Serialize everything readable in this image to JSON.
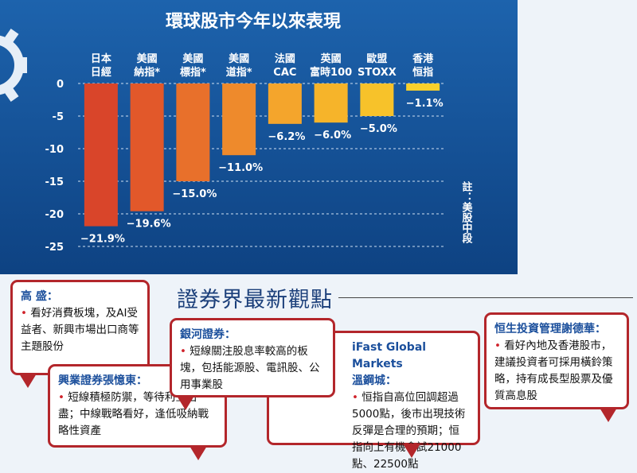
{
  "chart_data": {
    "type": "bar",
    "title": "環球股市今年以來表現",
    "categories": [
      [
        "日本",
        "日經"
      ],
      [
        "美國",
        "納指*"
      ],
      [
        "美國",
        "標指*"
      ],
      [
        "美國",
        "道指*"
      ],
      [
        "法國",
        "CAC"
      ],
      [
        "英國",
        "富時100"
      ],
      [
        "歐盟",
        "STOXX"
      ],
      [
        "香港",
        "恒指"
      ]
    ],
    "values": [
      -21.9,
      -19.6,
      -15.0,
      -11.0,
      -6.2,
      -6.0,
      -5.0,
      -1.1
    ],
    "value_labels": [
      "−21.9%",
      "−19.6%",
      "−15.0%",
      "−11.0%",
      "−6.2%",
      "−6.0%",
      "−5.0%",
      "−1.1%"
    ],
    "colors": [
      "#d9452a",
      "#e2582a",
      "#e8702b",
      "#ee8a2c",
      "#f4a52c",
      "#f6b42a",
      "#f7c22a",
      "#f8d02c"
    ],
    "ylim": [
      -25,
      0
    ],
    "yticks": [
      0,
      -5,
      -10,
      -15,
      -20,
      -25
    ],
    "grid": true,
    "annotation": "註：美股中段"
  },
  "section_title": "證券界最新觀點",
  "opinions": [
    {
      "name": "高 盛：",
      "text": "看好消費板塊，及AI受益者、新興市場出口商等主題股份"
    },
    {
      "name": "興業證券張憶東：",
      "text": "短線積極防禦，等待利空出盡；中線戰略看好，逢低吸納戰略性資產"
    },
    {
      "name": "銀河證券：",
      "text": "短線關注股息率較高的板塊，包括能源股、電訊股、公用事業股"
    },
    {
      "name": [
        "iFast Global Markets",
        "溫鋼城："
      ],
      "text": "恒指自高位回調超過5000點，後市出現技術反彈是合理的預期；恒指向上有機會試21000點、22500點"
    },
    {
      "name": "恒生投資管理謝德華：",
      "text": "看好內地及香港股市，建議投資者可採用橫鈴策略，持有成長型股票及優質高息股"
    }
  ]
}
